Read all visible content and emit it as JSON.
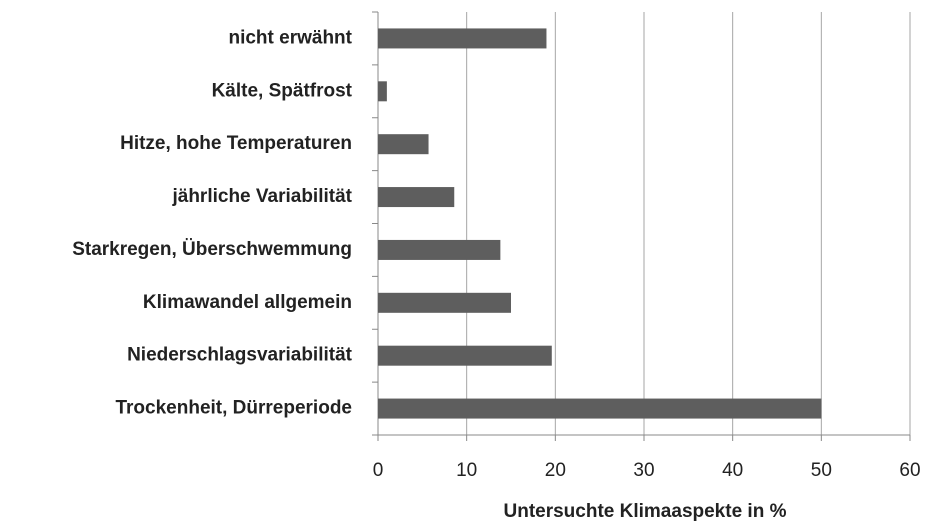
{
  "chart_data": {
    "type": "bar",
    "orientation": "horizontal",
    "categories": [
      "nicht erwähnt",
      "Kälte, Spätfrost",
      "Hitze, hohe Temperaturen",
      "jährliche Variabilität",
      "Starkregen, Überschwemmung",
      "Klimawandel allgemein",
      "Niederschlagsvariabilität",
      "Trockenheit, Dürreperiode"
    ],
    "values": [
      19,
      1,
      5.7,
      8.6,
      13.8,
      15,
      19.6,
      50
    ],
    "color": "#5e5e5e",
    "x_label": "Untersuchte Klimaaspekte in %",
    "xlim": [
      0,
      60
    ],
    "xticks": [
      0,
      10,
      20,
      30,
      40,
      50,
      60
    ],
    "grid": true
  }
}
